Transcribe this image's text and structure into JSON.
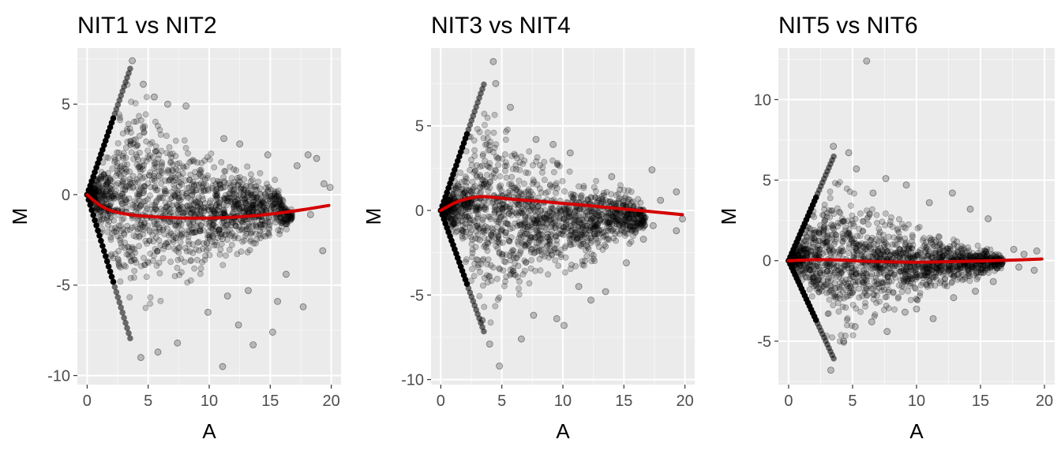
{
  "chart_data": [
    {
      "type": "scatter",
      "title": "NIT1  vs  NIT2",
      "xlabel": "A",
      "ylabel": "M",
      "xlim": [
        -0.8,
        20.8
      ],
      "ylim": [
        -10.5,
        8.1
      ],
      "xticks": [
        0,
        5,
        10,
        15,
        20
      ],
      "yticks": [
        -10,
        -5,
        0,
        5
      ],
      "grid": true,
      "cloud": {
        "upper_edge": [
          [
            0,
            0
          ],
          [
            0.5,
            1.0
          ],
          [
            1.5,
            2.5
          ],
          [
            2.5,
            4.3
          ],
          [
            3.0,
            5.4
          ],
          [
            3.6,
            6.9
          ],
          [
            4.5,
            6.0
          ],
          [
            6,
            4.4
          ],
          [
            8,
            3.2
          ],
          [
            10,
            2.5
          ],
          [
            12,
            1.9
          ],
          [
            14,
            1.4
          ],
          [
            15.5,
            0.8
          ],
          [
            16.5,
            -0.3
          ],
          [
            17,
            -1.2
          ]
        ],
        "lower_edge": [
          [
            0,
            0
          ],
          [
            0.5,
            -1.0
          ],
          [
            1.5,
            -3.3
          ],
          [
            2.5,
            -5.6
          ],
          [
            3.0,
            -6.8
          ],
          [
            3.6,
            -8.0
          ],
          [
            4.5,
            -7.0
          ],
          [
            6,
            -5.9
          ],
          [
            8,
            -5.0
          ],
          [
            10,
            -4.3
          ],
          [
            12,
            -3.6
          ],
          [
            14,
            -2.9
          ],
          [
            15.5,
            -2.3
          ],
          [
            16.5,
            -2.0
          ],
          [
            17,
            -1.6
          ]
        ],
        "diagonal_upper": [
          [
            0,
            0
          ],
          [
            3.6,
            7.1
          ]
        ],
        "diagonal_lower": [
          [
            0,
            0
          ],
          [
            3.6,
            -8.1
          ]
        ]
      },
      "outliers": [
        [
          3.7,
          7.4
        ],
        [
          4.6,
          6.1
        ],
        [
          5.5,
          5.4
        ],
        [
          6.6,
          5.0
        ],
        [
          8.1,
          4.9
        ],
        [
          11.2,
          3.1
        ],
        [
          12.5,
          2.8
        ],
        [
          14.8,
          2.2
        ],
        [
          17.2,
          1.6
        ],
        [
          18.1,
          2.2
        ],
        [
          18.8,
          2.0
        ],
        [
          19.4,
          0.6
        ],
        [
          19.9,
          0.4
        ],
        [
          18.3,
          -1.1
        ],
        [
          19.3,
          -3.1
        ],
        [
          4.4,
          -9.0
        ],
        [
          5.8,
          -8.7
        ],
        [
          7.4,
          -8.2
        ],
        [
          11.1,
          -9.5
        ],
        [
          13.6,
          -8.3
        ],
        [
          15.2,
          -7.6
        ],
        [
          17.7,
          -6.2
        ],
        [
          15.6,
          -5.9
        ],
        [
          12.4,
          -7.2
        ],
        [
          9.9,
          -6.5
        ],
        [
          11.5,
          -5.6
        ],
        [
          13.2,
          -5.3
        ],
        [
          16.3,
          -4.4
        ]
      ],
      "trend": {
        "color": "#d40000",
        "x": [
          0,
          0.5,
          1,
          1.5,
          2,
          3,
          4,
          5,
          6,
          7,
          8,
          10,
          12,
          14,
          16,
          18,
          19.8
        ],
        "y": [
          0,
          -0.3,
          -0.55,
          -0.75,
          -0.9,
          -1.05,
          -1.15,
          -1.2,
          -1.25,
          -1.28,
          -1.3,
          -1.3,
          -1.25,
          -1.15,
          -1.0,
          -0.8,
          -0.6
        ]
      }
    },
    {
      "type": "scatter",
      "title": "NIT3  vs  NIT4",
      "xlabel": "A",
      "ylabel": "M",
      "xlim": [
        -0.8,
        20.8
      ],
      "ylim": [
        -10.3,
        9.6
      ],
      "xticks": [
        0,
        5,
        10,
        15,
        20
      ],
      "yticks": [
        -10,
        -5,
        0,
        5
      ],
      "grid": true,
      "cloud": {
        "upper_edge": [
          [
            0,
            0
          ],
          [
            0.5,
            1.0
          ],
          [
            1.5,
            2.8
          ],
          [
            2.5,
            4.8
          ],
          [
            3.0,
            6.0
          ],
          [
            3.6,
            7.4
          ],
          [
            4.5,
            5.8
          ],
          [
            6,
            4.3
          ],
          [
            8,
            3.3
          ],
          [
            10,
            2.7
          ],
          [
            12,
            2.2
          ],
          [
            14,
            1.8
          ],
          [
            15.5,
            1.2
          ],
          [
            16.5,
            0.4
          ],
          [
            17,
            -0.4
          ]
        ],
        "lower_edge": [
          [
            0,
            0
          ],
          [
            0.5,
            -0.8
          ],
          [
            1.5,
            -2.4
          ],
          [
            2.5,
            -4.2
          ],
          [
            3.0,
            -5.5
          ],
          [
            3.6,
            -7.2
          ],
          [
            4.5,
            -6.2
          ],
          [
            6,
            -5.2
          ],
          [
            8,
            -4.4
          ],
          [
            10,
            -3.8
          ],
          [
            12,
            -3.2
          ],
          [
            14,
            -2.6
          ],
          [
            15.5,
            -2.0
          ],
          [
            16.5,
            -1.4
          ],
          [
            17,
            -0.9
          ]
        ],
        "diagonal_upper": [
          [
            0,
            0
          ],
          [
            3.6,
            7.6
          ]
        ],
        "diagonal_lower": [
          [
            0,
            0
          ],
          [
            3.6,
            -7.3
          ]
        ]
      },
      "outliers": [
        [
          4.3,
          8.8
        ],
        [
          4.5,
          7.5
        ],
        [
          5.7,
          6.1
        ],
        [
          7.8,
          4.2
        ],
        [
          9.2,
          3.9
        ],
        [
          10.6,
          3.4
        ],
        [
          14.0,
          2.0
        ],
        [
          17.3,
          2.4
        ],
        [
          18.0,
          0.6
        ],
        [
          19.3,
          1.1
        ],
        [
          19.8,
          -0.5
        ],
        [
          19.3,
          -1.2
        ],
        [
          17.4,
          -0.9
        ],
        [
          4.0,
          -7.9
        ],
        [
          4.8,
          -9.2
        ],
        [
          6.6,
          -7.6
        ],
        [
          7.6,
          -6.2
        ],
        [
          9.5,
          -6.4
        ],
        [
          10.1,
          -6.8
        ],
        [
          12.3,
          -5.3
        ],
        [
          13.5,
          -4.8
        ],
        [
          15.2,
          -3.1
        ],
        [
          16.6,
          -1.7
        ],
        [
          11.3,
          -4.5
        ]
      ],
      "trend": {
        "color": "#d40000",
        "x": [
          0,
          0.5,
          1,
          1.5,
          2,
          2.5,
          3,
          3.5,
          4,
          5,
          6,
          8,
          10,
          12,
          14,
          16,
          18,
          19.8
        ],
        "y": [
          0,
          0.2,
          0.4,
          0.55,
          0.65,
          0.75,
          0.8,
          0.82,
          0.8,
          0.72,
          0.65,
          0.55,
          0.42,
          0.3,
          0.15,
          0.02,
          -0.12,
          -0.25
        ]
      }
    },
    {
      "type": "scatter",
      "title": "NIT5  vs  NIT6",
      "xlabel": "A",
      "ylabel": "M",
      "xlim": [
        -0.8,
        20.8
      ],
      "ylim": [
        -7.7,
        13.2
      ],
      "xticks": [
        0,
        5,
        10,
        15,
        20
      ],
      "yticks": [
        -5,
        0,
        5,
        10
      ],
      "grid": true,
      "cloud": {
        "upper_edge": [
          [
            0,
            0
          ],
          [
            0.5,
            0.8
          ],
          [
            1.5,
            2.6
          ],
          [
            2.5,
            4.4
          ],
          [
            3.0,
            5.4
          ],
          [
            3.6,
            6.6
          ],
          [
            4.5,
            4.6
          ],
          [
            6,
            3.6
          ],
          [
            8,
            2.8
          ],
          [
            10,
            2.2
          ],
          [
            12,
            1.7
          ],
          [
            14,
            1.2
          ],
          [
            15.5,
            0.9
          ],
          [
            16.5,
            0.5
          ],
          [
            17,
            0.1
          ]
        ],
        "lower_edge": [
          [
            0,
            0
          ],
          [
            0.5,
            -0.7
          ],
          [
            1.5,
            -2.2
          ],
          [
            2.5,
            -3.8
          ],
          [
            3.0,
            -4.8
          ],
          [
            3.6,
            -6.0
          ],
          [
            4.5,
            -5.0
          ],
          [
            6,
            -4.0
          ],
          [
            8,
            -3.2
          ],
          [
            10,
            -2.5
          ],
          [
            12,
            -2.0
          ],
          [
            14,
            -1.4
          ],
          [
            15.5,
            -1.0
          ],
          [
            16.5,
            -0.6
          ],
          [
            17,
            -0.3
          ]
        ],
        "diagonal_upper": [
          [
            0,
            0
          ],
          [
            3.6,
            6.6
          ]
        ],
        "diagonal_lower": [
          [
            0,
            0
          ],
          [
            3.6,
            -6.2
          ]
        ]
      },
      "outliers": [
        [
          6.1,
          12.4
        ],
        [
          3.5,
          7.1
        ],
        [
          4.7,
          6.7
        ],
        [
          5.3,
          5.7
        ],
        [
          6.6,
          4.2
        ],
        [
          7.6,
          5.1
        ],
        [
          9.2,
          4.7
        ],
        [
          11.0,
          3.6
        ],
        [
          12.8,
          4.2
        ],
        [
          14.2,
          3.2
        ],
        [
          15.6,
          2.6
        ],
        [
          17.6,
          0.7
        ],
        [
          18.4,
          0.4
        ],
        [
          19.4,
          0.6
        ],
        [
          19.2,
          -0.6
        ],
        [
          18.0,
          -0.4
        ],
        [
          3.3,
          -6.8
        ],
        [
          4.3,
          -5.0
        ],
        [
          5.2,
          -4.1
        ],
        [
          6.5,
          -3.8
        ],
        [
          7.7,
          -4.4
        ],
        [
          9.1,
          -3.2
        ],
        [
          10.0,
          -3.0
        ],
        [
          11.3,
          -3.6
        ],
        [
          12.9,
          -2.3
        ],
        [
          14.6,
          -1.9
        ],
        [
          16.0,
          -1.3
        ]
      ],
      "trend": {
        "color": "#d40000",
        "x": [
          0,
          1,
          2,
          3,
          4,
          5,
          6,
          8,
          10,
          12,
          14,
          16,
          18,
          19.8
        ],
        "y": [
          0,
          0.03,
          0.06,
          0.06,
          0.04,
          0.0,
          -0.04,
          -0.08,
          -0.1,
          -0.08,
          -0.04,
          0.0,
          0.05,
          0.1
        ]
      }
    }
  ]
}
